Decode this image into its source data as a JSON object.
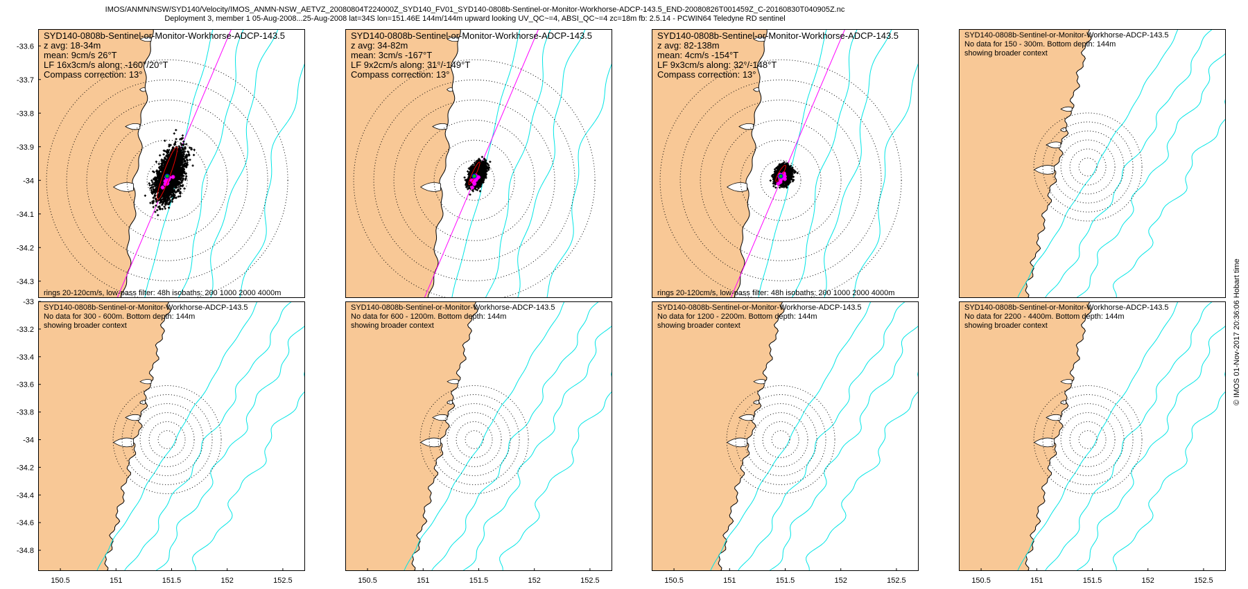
{
  "header": {
    "line1": "IMOS/ANMN/NSW/SYD140/Velocity/IMOS_ANMN-NSW_AETVZ_20080804T224000Z_SYD140_FV01_SYD140-0808b-Sentinel-or-Monitor-Workhorse-ADCP-143.5_END-20080826T001459Z_C-20160830T040905Z.nc",
    "line2": "Deployment 3, member 1 05-Aug-2008...25-Aug-2008 lat=34S lon=151.46E 144m/144m upward looking UV_QC~=4, ABSI_QC~=4 zc=18m fb: 2.5.14 - PCWIN64 Teledyne RD sentinel"
  },
  "credit": "© IMOS 01-Nov-2017 20:36:06 Hobart time",
  "colors": {
    "land": "#f8c896",
    "isobath": "#00e5e5",
    "axis_line": "#ff00ff",
    "scatter": "#000000",
    "mean_marker": "#ff00ff"
  },
  "map_extent": {
    "top_row": {
      "lon": [
        150.3,
        152.7
      ],
      "lat": [
        -34.35,
        -33.55
      ],
      "yticks": [
        -33.6,
        -33.7,
        -33.8,
        -33.9,
        -34,
        -34.1,
        -34.2,
        -34.3
      ],
      "ytick_labels": [
        "-33.6",
        "-33.7",
        "-33.8",
        "-33.9",
        "-34",
        "-34.1",
        "-34.2",
        "-34.3"
      ]
    },
    "bottom_row": {
      "lon": [
        150.3,
        152.7
      ],
      "lat": [
        -34.95,
        -33.0
      ],
      "yticks": [
        -33,
        -33.2,
        -33.4,
        -33.6,
        -33.8,
        -34,
        -34.2,
        -34.4,
        -34.6,
        -34.8
      ],
      "ytick_labels": [
        "-33",
        "-33.2",
        "-33.4",
        "-33.6",
        "-33.8",
        "-34",
        "-34.2",
        "-34.4",
        "-34.6",
        "-34.8"
      ]
    },
    "xticks": [
      150.5,
      151,
      151.5,
      152,
      152.5
    ],
    "xtick_labels": [
      "150.5",
      "151",
      "151.5",
      "152",
      "152.5"
    ],
    "mooring": {
      "lon": 151.46,
      "lat": -34.0
    }
  },
  "panels": [
    {
      "id": "p1",
      "row": 0,
      "col": 0,
      "kind": "data",
      "zoom": "top_row",
      "lines": [
        "SYD140-0808b-Sentinel-or-Monitor-Workhorse-ADCP-143.5",
        "z avg: 18-34m",
        "mean: 9cm/s 26°T",
        "LF 16x3cm/s along: -160°/20°T",
        "Compass correction: 13°"
      ],
      "footer": "rings 20-120cm/s, low-pass filter: 48h isobaths: 200 1000 2000 4000m",
      "scatter": {
        "major_cms": 45,
        "minor_cms": 20,
        "angle_deg": 20
      }
    },
    {
      "id": "p2",
      "row": 0,
      "col": 1,
      "kind": "data",
      "zoom": "top_row",
      "lines": [
        "SYD140-0808b-Sentinel-or-Monitor-Workhorse-ADCP-143.5",
        "z avg: 34-82m",
        "mean: 3cm/s -167°T",
        "LF 9x2cm/s along: 31°/-149°T",
        "Compass correction: 13°"
      ],
      "footer": "",
      "scatter": {
        "major_cms": 20,
        "minor_cms": 11,
        "angle_deg": 25
      }
    },
    {
      "id": "p3",
      "row": 0,
      "col": 2,
      "kind": "data",
      "zoom": "top_row",
      "lines": [
        "SYD140-0808b-Sentinel-or-Monitor-Workhorse-ADCP-143.5",
        "z avg: 82-138m",
        "mean: 4cm/s -154°T",
        "LF 9x3cm/s along: 32°/-148°T",
        "Compass correction: 13°"
      ],
      "footer": "rings 20-120cm/s, low-pass filter: 48h isobaths: 200 1000 2000 4000m",
      "scatter": {
        "major_cms": 15,
        "minor_cms": 12,
        "angle_deg": 30
      }
    },
    {
      "id": "p4",
      "row": 0,
      "col": 3,
      "kind": "nodata",
      "zoom": "bottom_row",
      "lines": [
        "SYD140-0808b-Sentinel-or-Monitor-Workhorse-ADCP-143.5",
        "No data for 150 - 300m. Bottom depth: 144m",
        "showing broader context"
      ],
      "footer": ""
    },
    {
      "id": "p5",
      "row": 1,
      "col": 0,
      "kind": "nodata",
      "zoom": "bottom_row",
      "lines": [
        "SYD140-0808b-Sentinel-or-Monitor-Workhorse-ADCP-143.5",
        "No data for 300 - 600m. Bottom depth: 144m",
        "showing broader context"
      ],
      "footer": ""
    },
    {
      "id": "p6",
      "row": 1,
      "col": 1,
      "kind": "nodata",
      "zoom": "bottom_row",
      "lines": [
        "SYD140-0808b-Sentinel-or-Monitor-Workhorse-ADCP-143.5",
        "No data for 600 - 1200m. Bottom depth: 144m",
        "showing broader context"
      ],
      "footer": ""
    },
    {
      "id": "p7",
      "row": 1,
      "col": 2,
      "kind": "nodata",
      "zoom": "bottom_row",
      "lines": [
        "SYD140-0808b-Sentinel-or-Monitor-Workhorse-ADCP-143.5",
        "No data for 1200 - 2200m. Bottom depth: 144m",
        "showing broader context"
      ],
      "footer": ""
    },
    {
      "id": "p8",
      "row": 1,
      "col": 3,
      "kind": "nodata",
      "zoom": "bottom_row",
      "lines": [
        "SYD140-0808b-Sentinel-or-Monitor-Workhorse-ADCP-143.5",
        "No data for 2200 - 4400m. Bottom depth: 144m",
        "showing broader context"
      ],
      "footer": ""
    }
  ]
}
